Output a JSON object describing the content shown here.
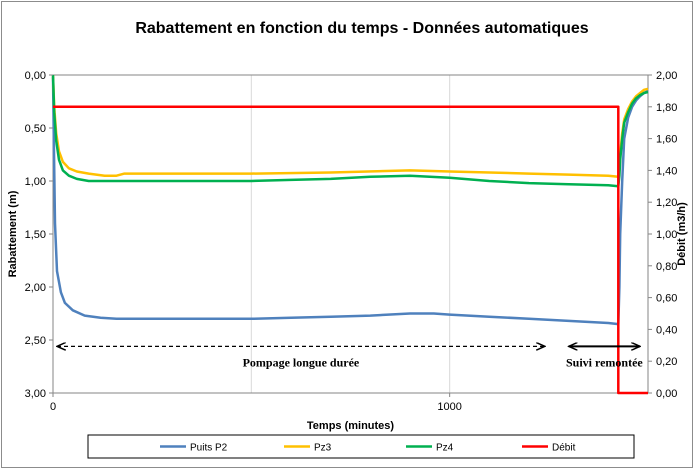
{
  "chart_data": {
    "type": "line",
    "title": "Rabattement en fonction du temps - Données automatiques",
    "xlabel": "Temps (minutes)",
    "ylabel": "Rabattement (m)",
    "y2label": "Débit (m3/h)",
    "xlim": [
      0,
      1500
    ],
    "ylim": [
      3.0,
      0.0
    ],
    "y2lim": [
      0,
      2.0
    ],
    "y_reversed": true,
    "grid": "vertical",
    "legend_position": "bottom",
    "x_ticks": [
      "0",
      "1000"
    ],
    "x_tick_values": [
      0,
      1000
    ],
    "y_ticks": [
      "0,00",
      "0,50",
      "1,00",
      "1,50",
      "2,00",
      "2,50",
      "3,00"
    ],
    "y_tick_values": [
      0,
      0.5,
      1.0,
      1.5,
      2.0,
      2.5,
      3.0
    ],
    "y2_ticks": [
      "0,00",
      "0,20",
      "0,40",
      "0,60",
      "0,80",
      "1,00",
      "1,20",
      "1,40",
      "1,60",
      "1,80",
      "2,00"
    ],
    "y2_tick_values": [
      0,
      0.2,
      0.4,
      0.6,
      0.8,
      1.0,
      1.2,
      1.4,
      1.6,
      1.8,
      2.0
    ],
    "series": [
      {
        "name": "Puits P2",
        "color": "#4f81bd",
        "axis": "left",
        "x": [
          0,
          2,
          5,
          10,
          20,
          30,
          50,
          80,
          120,
          160,
          200,
          300,
          400,
          500,
          600,
          700,
          800,
          900,
          960,
          1000,
          1100,
          1200,
          1300,
          1400,
          1425,
          1428,
          1430,
          1435,
          1440,
          1450,
          1460,
          1470,
          1480,
          1490,
          1500
        ],
        "y": [
          0.02,
          0.6,
          1.4,
          1.85,
          2.05,
          2.15,
          2.22,
          2.27,
          2.29,
          2.3,
          2.3,
          2.3,
          2.3,
          2.3,
          2.29,
          2.28,
          2.27,
          2.25,
          2.25,
          2.26,
          2.28,
          2.3,
          2.32,
          2.34,
          2.35,
          2.0,
          1.5,
          1.0,
          0.6,
          0.4,
          0.3,
          0.24,
          0.2,
          0.17,
          0.15
        ]
      },
      {
        "name": "Pz3",
        "color": "#ffc000",
        "axis": "left",
        "x": [
          0,
          3,
          8,
          15,
          25,
          40,
          60,
          90,
          130,
          160,
          180,
          300,
          500,
          700,
          900,
          1000,
          1100,
          1200,
          1300,
          1400,
          1425,
          1428,
          1430,
          1435,
          1440,
          1450,
          1460,
          1470,
          1480,
          1490,
          1500
        ],
        "y": [
          0.0,
          0.3,
          0.55,
          0.72,
          0.82,
          0.88,
          0.91,
          0.93,
          0.95,
          0.95,
          0.93,
          0.93,
          0.93,
          0.92,
          0.9,
          0.91,
          0.92,
          0.93,
          0.94,
          0.95,
          0.96,
          0.9,
          0.75,
          0.55,
          0.42,
          0.32,
          0.25,
          0.2,
          0.17,
          0.14,
          0.13
        ]
      },
      {
        "name": "Pz4",
        "color": "#00b050",
        "axis": "left",
        "x": [
          0,
          3,
          8,
          15,
          25,
          40,
          60,
          90,
          130,
          200,
          300,
          400,
          500,
          600,
          700,
          800,
          900,
          1000,
          1100,
          1200,
          1300,
          1400,
          1425,
          1428,
          1430,
          1435,
          1440,
          1450,
          1460,
          1470,
          1480,
          1490,
          1500
        ],
        "y": [
          0.0,
          0.35,
          0.62,
          0.8,
          0.9,
          0.95,
          0.98,
          1.0,
          1.0,
          1.0,
          1.0,
          1.0,
          1.0,
          0.99,
          0.98,
          0.96,
          0.95,
          0.97,
          1.0,
          1.02,
          1.03,
          1.04,
          1.05,
          0.95,
          0.8,
          0.6,
          0.45,
          0.35,
          0.27,
          0.22,
          0.19,
          0.17,
          0.16
        ]
      },
      {
        "name": "Débit",
        "color": "#ff0000",
        "axis": "right",
        "x": [
          0,
          1425,
          1425,
          1500
        ],
        "y": [
          1.8,
          1.8,
          0,
          0
        ]
      }
    ],
    "annotations": [
      {
        "text": "Pompage longue durée",
        "x_from": 0,
        "x_to": 1240
      },
      {
        "text": "Suivi remontée",
        "x_from": 1290,
        "x_to": 1480
      }
    ]
  }
}
